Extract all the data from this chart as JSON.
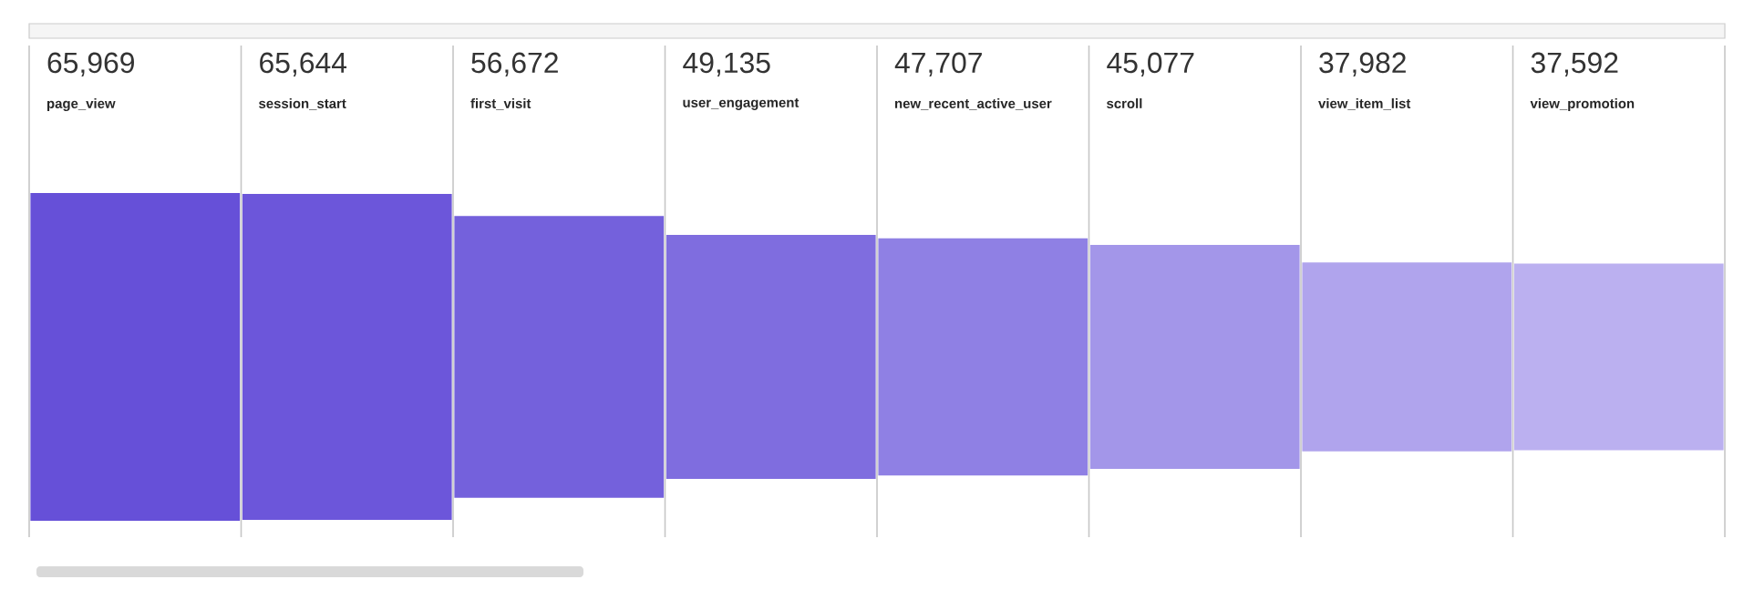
{
  "chart_data": {
    "type": "other",
    "categories": [
      "page_view",
      "session_start",
      "first_visit",
      "user_engagement",
      "new_recent_active_user",
      "scroll",
      "view_item_list",
      "view_promotion"
    ],
    "values": [
      65969,
      65644,
      56672,
      49135,
      47707,
      45077,
      37982,
      37592
    ],
    "value_labels": [
      "65,969",
      "65,644",
      "56,672",
      "49,135",
      "47,707",
      "45,077",
      "37,982",
      "37,592"
    ],
    "colors": [
      "#6650d8",
      "#6c56da",
      "#7461dc",
      "#7f6ddf",
      "#8f80e4",
      "#a396e9",
      "#b0a4ed",
      "#bbb0f0"
    ]
  }
}
